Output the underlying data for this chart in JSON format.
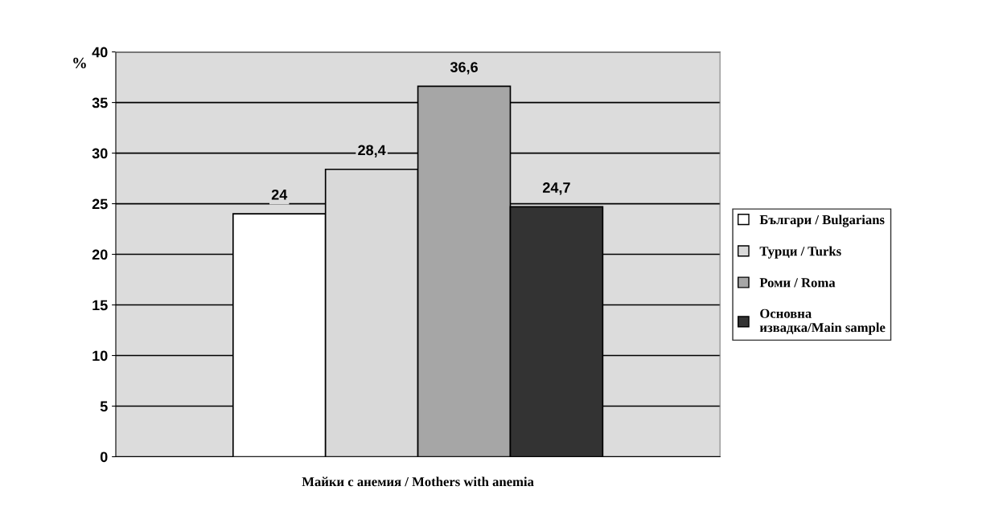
{
  "chart_data": {
    "type": "bar",
    "ylabel": "%",
    "categories": [
      "Майки с анемия / Mothers with anemia"
    ],
    "series": [
      {
        "name": "Българи / Bulgarians",
        "color": "#ffffff",
        "values": [
          24
        ],
        "value_labels": [
          "24"
        ]
      },
      {
        "name": "Турци / Turks",
        "color": "#d9d9d9",
        "values": [
          28.4
        ],
        "value_labels": [
          "28,4"
        ]
      },
      {
        "name": "Роми / Roma",
        "color": "#a6a6a6",
        "values": [
          36.6
        ],
        "value_labels": [
          "36,6"
        ]
      },
      {
        "name": "Основна\nизвадка/Main sample",
        "color": "#333333",
        "values": [
          24.7
        ],
        "value_labels": [
          "24,7"
        ]
      }
    ],
    "ylim": [
      0,
      40
    ],
    "yticks": [
      0,
      5,
      10,
      15,
      20,
      25,
      30,
      35,
      40
    ],
    "grid": "y",
    "legend": "right"
  }
}
